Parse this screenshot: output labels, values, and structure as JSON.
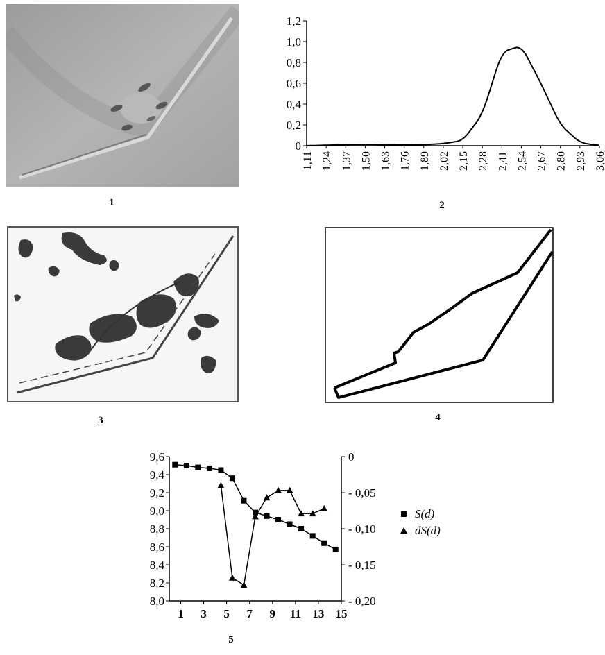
{
  "captions": [
    "1",
    "2",
    "3",
    "4",
    "5"
  ],
  "colors": {
    "photo_bg": "#a9a9a9",
    "ink": "#000000",
    "map_bg": "#f6f6f6",
    "dark_patch": "#3a3a3a"
  },
  "chart_data": [
    {
      "type": "line",
      "title": "",
      "xlabel": "",
      "ylabel": "",
      "x": [
        "1,11",
        "1,24",
        "1,37",
        "1,50",
        "1,63",
        "1,76",
        "1,89",
        "2,02",
        "2,15",
        "2,28",
        "2,41",
        "2,54",
        "2,67",
        "2,80",
        "2,93",
        "3,06"
      ],
      "yticks": [
        "0",
        "0,2",
        "0,4",
        "0,6",
        "0,8",
        "1,0",
        "1,2"
      ],
      "ylim": [
        0,
        1.2
      ],
      "series": [
        {
          "values": [
            0.0,
            0.005,
            0.01,
            0.012,
            0.01,
            0.008,
            0.01,
            0.02,
            0.05,
            0.3,
            0.9,
            0.96,
            0.6,
            0.2,
            0.03,
            0.0
          ]
        }
      ],
      "grid": false
    },
    {
      "type": "line",
      "title": "",
      "xlabel": "",
      "xticks": [
        "1",
        "3",
        "5",
        "7",
        "9",
        "11",
        "13",
        "15"
      ],
      "xlim": [
        0,
        15
      ],
      "yticks_left": [
        "8,0",
        "8,2",
        "8,4",
        "8,6",
        "8,8",
        "9,0",
        "9,2",
        "9,4",
        "9,6"
      ],
      "ylim_left": [
        8.0,
        9.6
      ],
      "yticks_right": [
        "0",
        "- 0,05",
        "- 0,10",
        "- 0,15",
        "- 0,20"
      ],
      "ylim_right": [
        -0.2,
        0
      ],
      "series": [
        {
          "name": "S(d)",
          "axis": "left",
          "marker": "square",
          "x": [
            0.5,
            1.5,
            2.5,
            3.5,
            4.5,
            5.5,
            6.5,
            7.5,
            8.5,
            9.5,
            10.5,
            11.5,
            12.5,
            13.5,
            14.5
          ],
          "values": [
            9.51,
            9.5,
            9.48,
            9.47,
            9.45,
            9.36,
            9.11,
            8.98,
            8.94,
            8.9,
            8.85,
            8.8,
            8.72,
            8.64,
            8.57
          ]
        },
        {
          "name": "dS(d)",
          "axis": "right",
          "marker": "triangle",
          "x": [
            4.5,
            5.5,
            6.5,
            7.5,
            8.5,
            9.5,
            10.5,
            11.5,
            12.5,
            13.5
          ],
          "values": [
            -0.04,
            -0.168,
            -0.178,
            -0.083,
            -0.057,
            -0.047,
            -0.047,
            -0.079,
            -0.079,
            -0.072
          ]
        }
      ],
      "legend": "right",
      "grid": false
    }
  ]
}
